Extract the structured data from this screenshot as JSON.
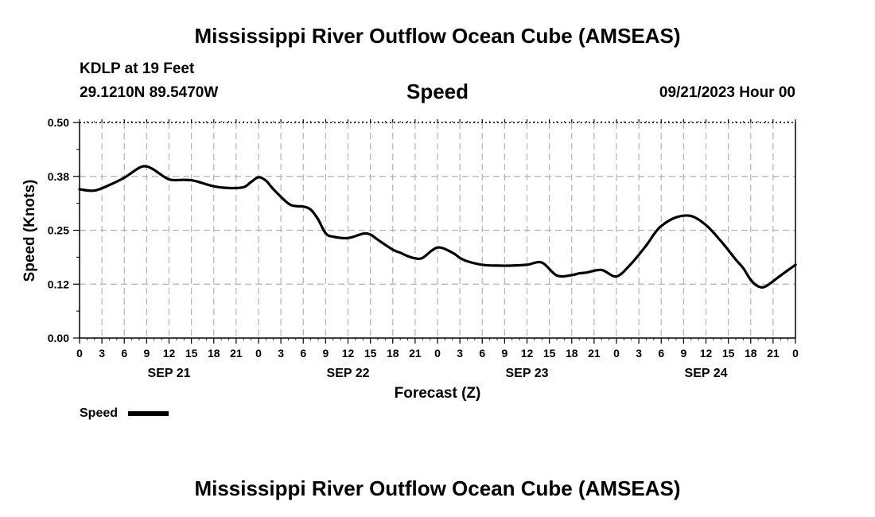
{
  "header": {
    "title": "Mississippi River Outflow Ocean Cube (AMSEAS)",
    "station": "KDLP at 19 Feet",
    "coords": "29.1210N  89.5470W",
    "variable": "Speed",
    "datetime": "09/21/2023 Hour 00"
  },
  "footer": {
    "title": "Mississippi River Outflow Ocean Cube (AMSEAS)"
  },
  "chart_data": {
    "type": "line",
    "title": "Speed",
    "xlabel": "Forecast (Z)",
    "ylabel": "Speed (Knots)",
    "ylim": [
      0,
      0.5
    ],
    "xlim": [
      0,
      96
    ],
    "y_ticks": [
      0.0,
      0.125,
      0.25,
      0.375,
      0.5
    ],
    "y_tick_labels": [
      "0.00",
      "0.12",
      "0.25",
      "0.38",
      "0.50"
    ],
    "x_tick_hours": [
      0,
      3,
      6,
      9,
      12,
      15,
      18,
      21,
      24,
      27,
      30,
      33,
      36,
      39,
      42,
      45,
      48,
      51,
      54,
      57,
      60,
      63,
      66,
      69,
      72,
      75,
      78,
      81,
      84,
      87,
      90,
      93,
      96
    ],
    "x_tick_labels": [
      "0",
      "3",
      "6",
      "9",
      "12",
      "15",
      "18",
      "21",
      "0",
      "3",
      "6",
      "9",
      "12",
      "15",
      "18",
      "21",
      "0",
      "3",
      "6",
      "9",
      "12",
      "15",
      "18",
      "21",
      "0",
      "3",
      "6",
      "9",
      "12",
      "15",
      "18",
      "21",
      "0"
    ],
    "day_labels": [
      {
        "hour": 12,
        "label": "SEP 21"
      },
      {
        "hour": 36,
        "label": "SEP 22"
      },
      {
        "hour": 60,
        "label": "SEP 23"
      },
      {
        "hour": 84,
        "label": "SEP 24"
      }
    ],
    "grid": true,
    "legend": {
      "placement": "bottom-left",
      "label": "Speed"
    },
    "series": [
      {
        "name": "Speed",
        "x": [
          0,
          2,
          4,
          6,
          8,
          9,
          10,
          12,
          14,
          15,
          16,
          18,
          20,
          22,
          23,
          24,
          25,
          26,
          28,
          29,
          30,
          31,
          32,
          33,
          34,
          36,
          38,
          39,
          40,
          42,
          43,
          44,
          45,
          46,
          48,
          50,
          51,
          52,
          54,
          56,
          58,
          60,
          62,
          64,
          66,
          67,
          68,
          70,
          72,
          74,
          76,
          77,
          78,
          80,
          82,
          84,
          86,
          88,
          89,
          90,
          91,
          92,
          94,
          96
        ],
        "values": [
          0.345,
          0.342,
          0.355,
          0.372,
          0.395,
          0.398,
          0.39,
          0.368,
          0.367,
          0.366,
          0.362,
          0.352,
          0.348,
          0.35,
          0.362,
          0.373,
          0.365,
          0.345,
          0.312,
          0.306,
          0.305,
          0.298,
          0.275,
          0.243,
          0.235,
          0.232,
          0.242,
          0.24,
          0.228,
          0.205,
          0.198,
          0.19,
          0.185,
          0.186,
          0.21,
          0.198,
          0.186,
          0.178,
          0.17,
          0.168,
          0.168,
          0.17,
          0.175,
          0.145,
          0.146,
          0.15,
          0.152,
          0.158,
          0.143,
          0.173,
          0.215,
          0.24,
          0.26,
          0.28,
          0.283,
          0.262,
          0.225,
          0.182,
          0.162,
          0.135,
          0.12,
          0.12,
          0.145,
          0.17
        ]
      }
    ]
  }
}
